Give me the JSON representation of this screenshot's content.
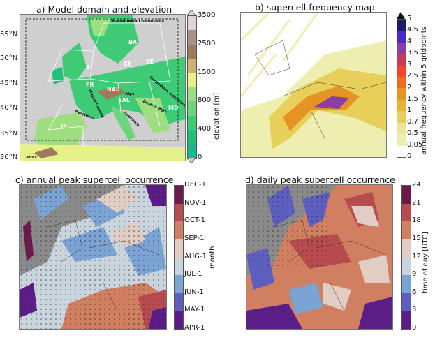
{
  "panels": {
    "a": {
      "title": "a) Model domain and elevation",
      "lat_ticks": [
        "55°N",
        "50°N",
        "45°N",
        "40°N",
        "35°N",
        "30°N"
      ],
      "colorbar": {
        "label": "elevation [m]",
        "ticks": [
          "3500",
          "2500",
          "1500",
          "800",
          "400",
          "0"
        ],
        "colors": [
          "#1db48f",
          "#20bf7c",
          "#3fca75",
          "#6cd47a",
          "#9ede80",
          "#e7f18c",
          "#cbb56e",
          "#9e7a5a",
          "#aa928a",
          "#dcd7d5"
        ]
      },
      "regions": [
        "BA",
        "CE",
        "EE",
        "BI",
        "FR",
        "NAL",
        "SAL",
        "MD",
        "IP"
      ],
      "mountains": [
        "Scandinavian mountains",
        "Carpathian mountains",
        "Massif Central",
        "Alps",
        "Dinaric Alps",
        "Pyrenees",
        "Appennin",
        "Atlas"
      ]
    },
    "b": {
      "title": "b) supercell frequency map",
      "colorbar": {
        "label": "annual frequency within 5 gridpoints",
        "ticks": [
          "5",
          "4.5",
          "4",
          "3.5",
          "3",
          "2.5",
          "2",
          "1.5",
          "1",
          "0.7",
          "0.5",
          "0.05",
          "0"
        ],
        "colors": [
          "#ffffff",
          "#eeeeb0",
          "#eee39a",
          "#e8cf5a",
          "#e6b433",
          "#e59423",
          "#ee6c1c",
          "#f5442b",
          "#c73b5d",
          "#8a3fa3",
          "#4b2ac8",
          "#1e1c6a"
        ]
      }
    },
    "c": {
      "title": "c) annual peak supercell occurrence",
      "colorbar": {
        "label": "month",
        "ticks": [
          "DEC-1",
          "NOV-1",
          "OCT-1",
          "SEP-1",
          "AUG-1",
          "JUL-1",
          "JUN-1",
          "MAY-1",
          "APR-1"
        ],
        "colors": [
          "#5a1e86",
          "#5c5fbf",
          "#7ba3d3",
          "#c9d4dc",
          "#e2cdc4",
          "#d08060",
          "#b84b4f",
          "#6b1a4b"
        ]
      }
    },
    "d": {
      "title": "d) daily peak supercell occurrence",
      "colorbar": {
        "label": "time of day [UTC]",
        "ticks": [
          "24",
          "21",
          "18",
          "15",
          "12",
          "9",
          "6",
          "3",
          "0"
        ],
        "colors": [
          "#5a1e86",
          "#5c5fbf",
          "#7ba3d3",
          "#c9d4dc",
          "#e2cdc4",
          "#d08060",
          "#b84b4f",
          "#6b1a4b"
        ]
      }
    }
  }
}
